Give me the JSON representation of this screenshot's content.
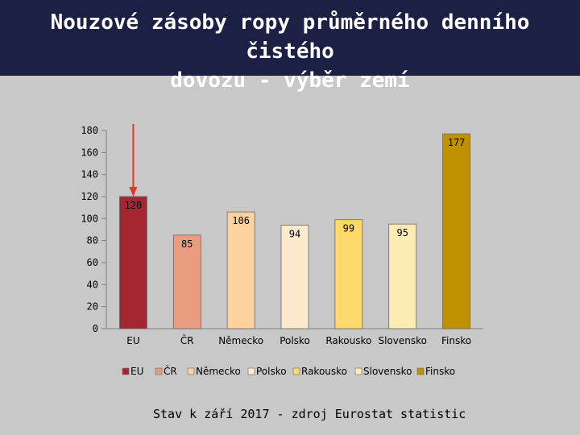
{
  "slide": {
    "title_line1": "Nouzové zásoby ropy průměrného denního čistého",
    "title_line2": "dovozu - výběr zemí",
    "caption": "Stav k září 2017 - zdroj Eurostat statistic"
  },
  "chart_data": {
    "type": "bar",
    "categories": [
      "EU",
      "ČR",
      "Německo",
      "Polsko",
      "Rakousko",
      "Slovensko",
      "Finsko"
    ],
    "values": [
      120,
      85,
      106,
      94,
      99,
      95,
      177
    ],
    "colors": [
      "#a32630",
      "#ea9c80",
      "#fdd29c",
      "#fde9cc",
      "#fcd96a",
      "#fdebb4",
      "#bf9000"
    ],
    "title": "",
    "xlabel": "",
    "ylabel": "",
    "ylim": [
      0,
      180
    ],
    "yticks": [
      0,
      20,
      40,
      60,
      80,
      100,
      120,
      140,
      160,
      180
    ],
    "legend": "bottom",
    "grid": false,
    "highlight_arrow_color": "#e0391e"
  }
}
